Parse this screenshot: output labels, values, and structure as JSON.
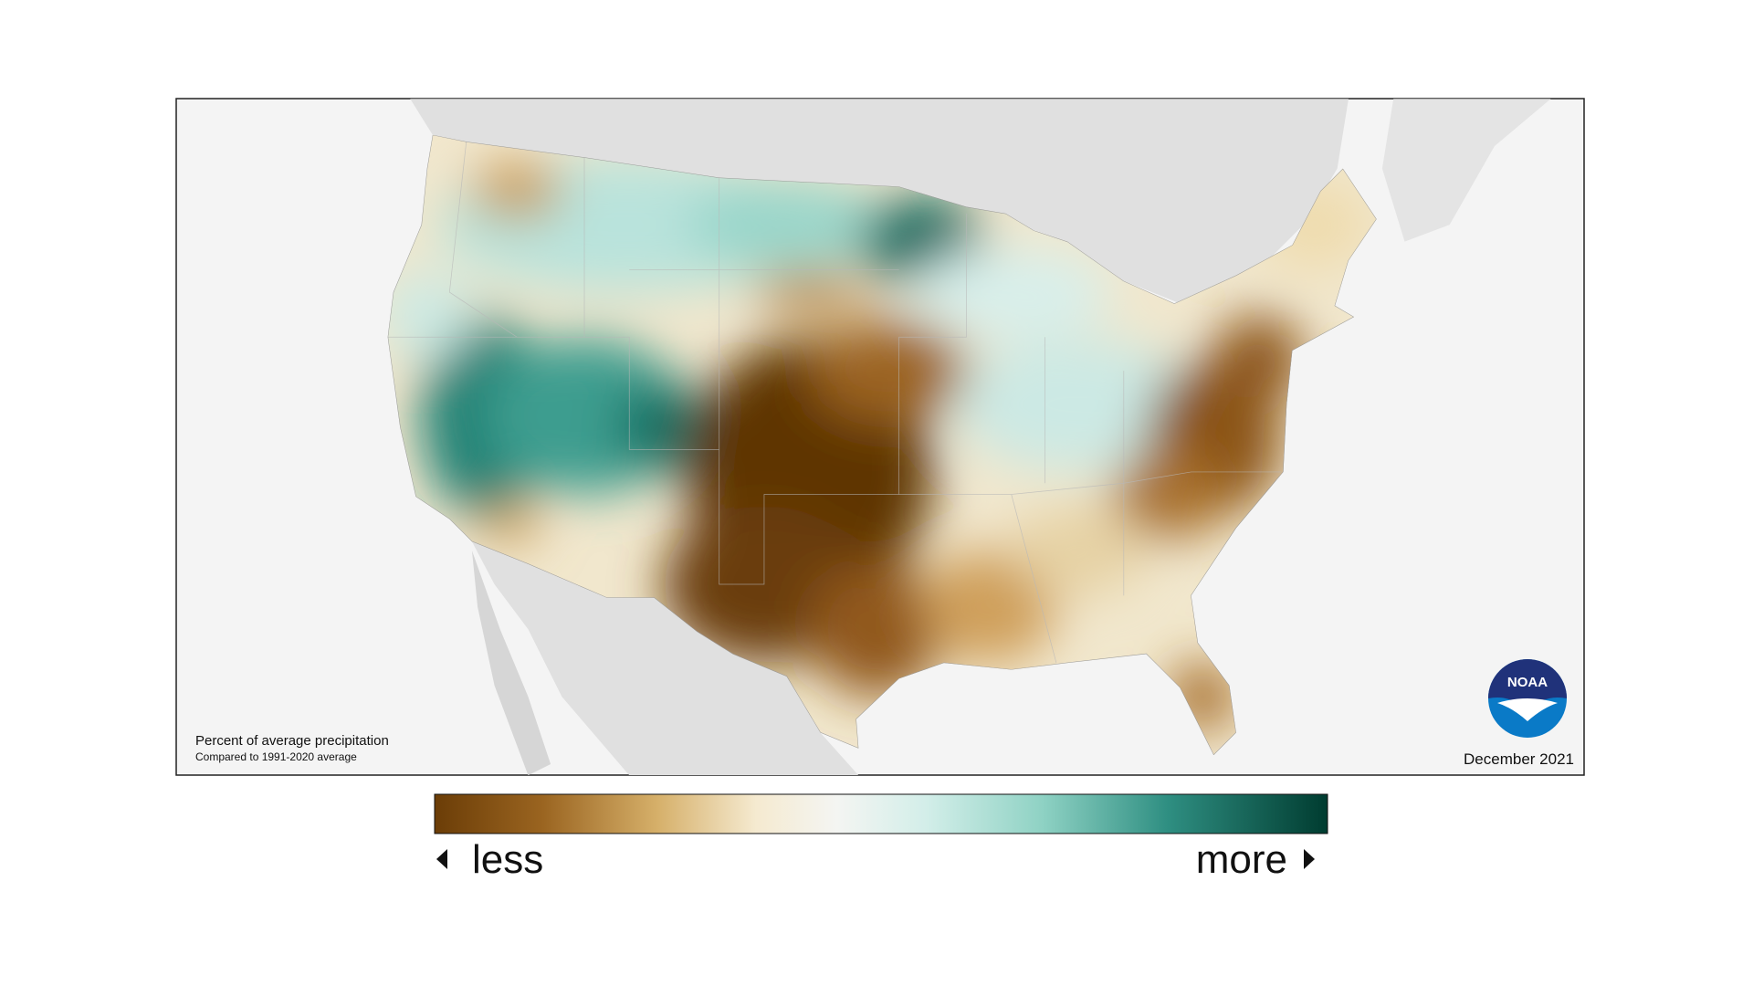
{
  "map": {
    "note": {
      "title": "Percent of average precipitation",
      "subtitle": "Compared to 1991-2020 average"
    },
    "date": "December 2021",
    "legend": {
      "low": "less",
      "high": "more"
    },
    "logo": "NOAA"
  }
}
